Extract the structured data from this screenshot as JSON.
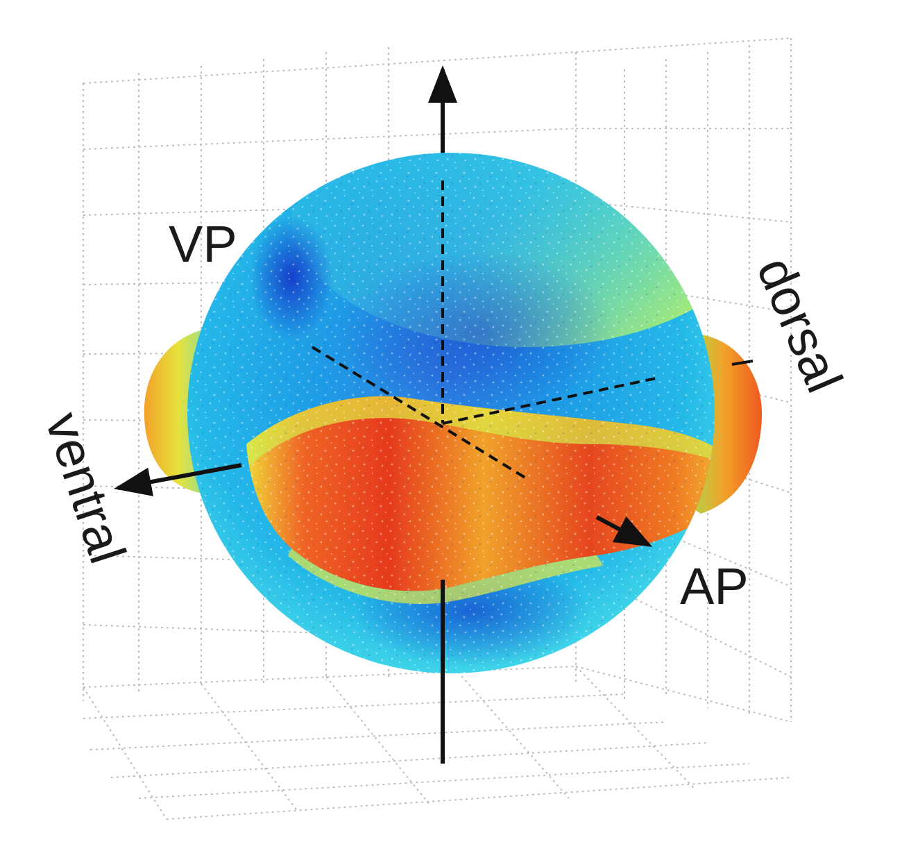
{
  "labels": {
    "vp": "VP",
    "dorsal": "dorsal",
    "ventral": "ventral",
    "ap": "AP"
  },
  "colors": {
    "background": "#ffffff",
    "axis": "#111111",
    "grid": "#bdbdbd",
    "embryo_base": "#1fa8e6",
    "embryo_deep": "#1440d0",
    "embryo_light": "#4fe0e6",
    "band_yellow": "#e8e840",
    "band_orange": "#f08a22",
    "band_red": "#e0321c"
  }
}
